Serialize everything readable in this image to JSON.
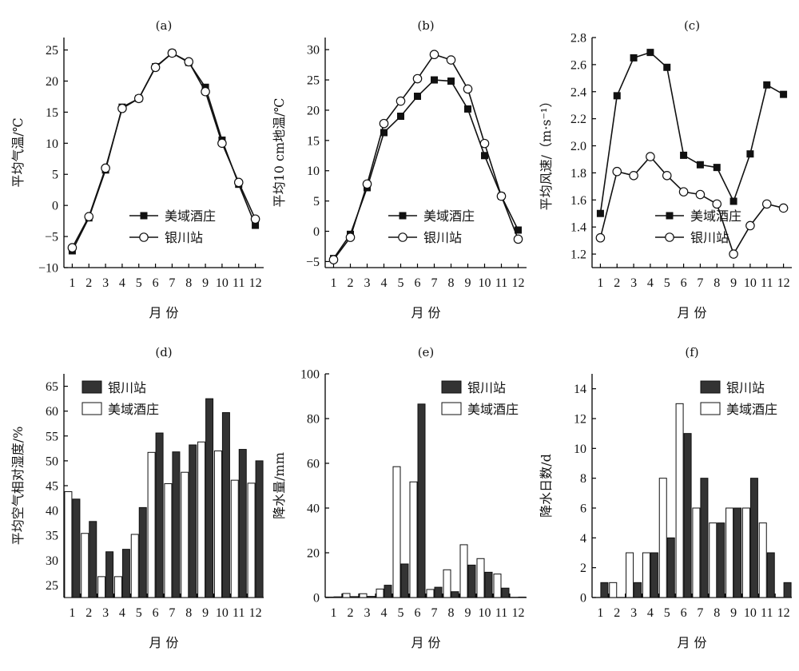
{
  "chart_data": [
    {
      "panel": "(a)",
      "type": "line",
      "title": "(a)",
      "xlabel": "月 份",
      "ylabel": "平均气温/℃",
      "x": [
        1,
        2,
        3,
        4,
        5,
        6,
        7,
        8,
        9,
        10,
        11,
        12
      ],
      "xticks": [
        "1",
        "2",
        "3",
        "4",
        "5",
        "6",
        "7",
        "8",
        "9",
        "10",
        "11",
        "12"
      ],
      "ylim": [
        -10,
        27
      ],
      "yticks": [
        -10,
        -5,
        0,
        5,
        10,
        15,
        20,
        25
      ],
      "ytick_labels": [
        "−10",
        "−5",
        "0",
        "5",
        "10",
        "15",
        "20",
        "25"
      ],
      "legend": "lower-right",
      "series": [
        {
          "name": "美域酒庄",
          "marker": "filled-square",
          "values": [
            -7.3,
            -2.0,
            5.7,
            15.8,
            17.2,
            22.3,
            24.5,
            23.0,
            19.0,
            10.5,
            3.4,
            -3.2
          ]
        },
        {
          "name": "银川站",
          "marker": "open-circle",
          "values": [
            -6.8,
            -1.8,
            6.0,
            15.6,
            17.2,
            22.2,
            24.5,
            23.1,
            18.3,
            10.0,
            3.7,
            -2.2
          ]
        }
      ]
    },
    {
      "panel": "(b)",
      "type": "line",
      "title": "(b)",
      "xlabel": "月 份",
      "ylabel": "平均10 cm地温/℃",
      "x": [
        1,
        2,
        3,
        4,
        5,
        6,
        7,
        8,
        9,
        10,
        11,
        12
      ],
      "xticks": [
        "1",
        "2",
        "3",
        "4",
        "5",
        "6",
        "7",
        "8",
        "9",
        "10",
        "11",
        "12"
      ],
      "ylim": [
        -6,
        32
      ],
      "yticks": [
        -5,
        0,
        5,
        10,
        15,
        20,
        25,
        30
      ],
      "ytick_labels": [
        "−5",
        "0",
        "5",
        "10",
        "15",
        "20",
        "25",
        "30"
      ],
      "legend": "lower-right",
      "series": [
        {
          "name": "美域酒庄",
          "marker": "filled-square",
          "values": [
            -4.5,
            -0.5,
            7.2,
            16.3,
            19.0,
            22.3,
            25.0,
            24.8,
            20.2,
            12.5,
            5.8,
            0.2
          ]
        },
        {
          "name": "银川站",
          "marker": "open-circle",
          "values": [
            -4.7,
            -1.0,
            7.8,
            17.8,
            21.5,
            25.2,
            29.2,
            28.3,
            23.5,
            14.5,
            5.8,
            -1.3
          ]
        }
      ]
    },
    {
      "panel": "(c)",
      "type": "line",
      "title": "(c)",
      "xlabel": "月 份",
      "ylabel": "平均风速/（m·s⁻¹）",
      "x": [
        1,
        2,
        3,
        4,
        5,
        6,
        7,
        8,
        9,
        10,
        11,
        12
      ],
      "xticks": [
        "1",
        "2",
        "3",
        "4",
        "5",
        "6",
        "7",
        "8",
        "9",
        "10",
        "11",
        "12"
      ],
      "ylim": [
        1.1,
        2.8
      ],
      "yticks": [
        1.2,
        1.4,
        1.6,
        1.8,
        2.0,
        2.2,
        2.4,
        2.6,
        2.8
      ],
      "ytick_labels": [
        "1.2",
        "1.4",
        "1.6",
        "1.8",
        "2.0",
        "2.2",
        "2.4",
        "2.6",
        "2.8"
      ],
      "legend": "lower-right",
      "series": [
        {
          "name": "美域酒庄",
          "marker": "filled-square",
          "values": [
            1.5,
            2.37,
            2.65,
            2.69,
            2.58,
            1.93,
            1.86,
            1.84,
            1.59,
            1.94,
            2.45,
            2.38
          ]
        },
        {
          "name": "银川站",
          "marker": "open-circle",
          "values": [
            1.32,
            1.81,
            1.78,
            1.92,
            1.78,
            1.66,
            1.64,
            1.57,
            1.2,
            1.41,
            1.57,
            1.54
          ]
        }
      ]
    },
    {
      "panel": "(d)",
      "type": "bar",
      "title": "(d)",
      "xlabel": "月 份",
      "ylabel": "平均空气相对湿度/%",
      "categories": [
        "1",
        "2",
        "3",
        "4",
        "5",
        "6",
        "7",
        "8",
        "9",
        "10",
        "11",
        "12"
      ],
      "ylim": [
        22.5,
        67.5
      ],
      "yticks": [
        25,
        30,
        35,
        40,
        45,
        50,
        55,
        60,
        65
      ],
      "ytick_labels": [
        "25",
        "30",
        "35",
        "40",
        "45",
        "50",
        "55",
        "60",
        "65"
      ],
      "legend": "top-left",
      "series": [
        {
          "name": "银川站",
          "fill": "#333333",
          "values": [
            42.3,
            37.8,
            31.7,
            32.2,
            40.6,
            55.6,
            51.8,
            53.2,
            62.5,
            59.7,
            52.3,
            50.0
          ]
        },
        {
          "name": "美域酒庄",
          "fill": "#ffffff",
          "values": [
            43.8,
            35.4,
            26.7,
            26.7,
            35.2,
            51.7,
            45.4,
            47.7,
            53.8,
            52.0,
            46.1,
            45.5
          ]
        }
      ]
    },
    {
      "panel": "(e)",
      "type": "bar",
      "title": "(e)",
      "xlabel": "月 份",
      "ylabel": "降水量/mm",
      "categories": [
        "1",
        "2",
        "3",
        "4",
        "5",
        "6",
        "7",
        "8",
        "9",
        "10",
        "11",
        "12"
      ],
      "ylim": [
        0,
        100
      ],
      "yticks": [
        0,
        20,
        40,
        60,
        80,
        100
      ],
      "ytick_labels": [
        "0",
        "20",
        "40",
        "60",
        "80",
        "100"
      ],
      "legend": "top-right",
      "series": [
        {
          "name": "银川站",
          "fill": "#333333",
          "values": [
            0.3,
            0.4,
            0.5,
            5.5,
            15.0,
            86.5,
            4.6,
            2.6,
            14.5,
            11.3,
            4.2,
            0.2
          ]
        },
        {
          "name": "美域酒庄",
          "fill": "#ffffff",
          "values": [
            0.2,
            1.8,
            1.7,
            3.8,
            58.5,
            51.7,
            3.6,
            12.4,
            23.6,
            17.4,
            10.5,
            0.1
          ]
        }
      ]
    },
    {
      "panel": "(f)",
      "type": "bar",
      "title": "(f)",
      "xlabel": "月 份",
      "ylabel": "降水日数/d",
      "categories": [
        "1",
        "2",
        "3",
        "4",
        "5",
        "6",
        "7",
        "8",
        "9",
        "10",
        "11",
        "12"
      ],
      "ylim": [
        0,
        15
      ],
      "yticks": [
        0,
        2,
        4,
        6,
        8,
        10,
        12,
        14
      ],
      "ytick_labels": [
        "0",
        "2",
        "4",
        "6",
        "8",
        "10",
        "12",
        "14"
      ],
      "legend": "top-right",
      "series": [
        {
          "name": "银川站",
          "fill": "#333333",
          "values": [
            1,
            0,
            1,
            3,
            4,
            11,
            8,
            5,
            6,
            8,
            3,
            1
          ]
        },
        {
          "name": "美域酒庄",
          "fill": "#ffffff",
          "values": [
            0,
            1,
            3,
            3,
            8,
            13,
            6,
            5,
            6,
            6,
            5,
            0
          ]
        }
      ]
    }
  ]
}
